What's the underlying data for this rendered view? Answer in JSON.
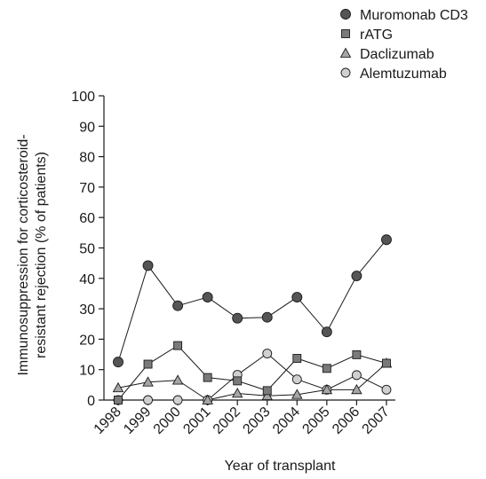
{
  "chart_data": {
    "type": "line",
    "title": "",
    "xlabel": "Year of transplant",
    "ylabel_lines": [
      "Immunosuppression for corticosteroid-",
      "resistant rejection (% of patients)"
    ],
    "categories": [
      "1998",
      "1999",
      "2000",
      "2001",
      "2002",
      "2003",
      "2004",
      "2005",
      "2006",
      "2007"
    ],
    "yticks": [
      "0",
      "10",
      "20",
      "30",
      "40",
      "50",
      "60",
      "70",
      "80",
      "90",
      "100"
    ],
    "ylim": [
      0,
      100
    ],
    "grid": false,
    "legend_position": "top-right",
    "series": [
      {
        "name": "Muromonab CD3",
        "marker": "circle",
        "color": "#555555",
        "values": [
          12.5,
          44.2,
          31.0,
          33.8,
          26.9,
          27.2,
          33.8,
          22.4,
          40.8,
          52.7
        ]
      },
      {
        "name": "rATG",
        "marker": "square",
        "color": "#7a7a7a",
        "values": [
          0,
          11.8,
          17.9,
          7.4,
          6.3,
          3.1,
          13.7,
          10.4,
          14.9,
          12.1
        ]
      },
      {
        "name": "Daclizumab",
        "marker": "triangle",
        "color": "#a6a6a6",
        "values": [
          4.0,
          5.9,
          6.5,
          0,
          2.2,
          1.4,
          1.8,
          3.4,
          3.4,
          12.1
        ]
      },
      {
        "name": "Alemtuzumab",
        "marker": "circle",
        "color": "#d0d0d0",
        "values": [
          0,
          0,
          0,
          0,
          8.3,
          15.3,
          6.8,
          3.4,
          8.2,
          3.4
        ]
      }
    ]
  }
}
